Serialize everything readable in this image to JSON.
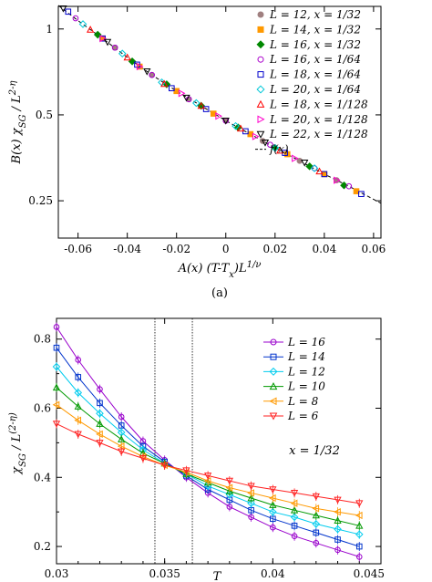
{
  "chart_data": [
    {
      "type": "scatter",
      "panel": "a",
      "caption": "(a)",
      "xlabel": "A(x) (T-T_x)L^(1/ν)",
      "ylabel": "B(x) χ_SG / L^(2-η)",
      "xlim": [
        -0.068,
        0.063
      ],
      "ylim": [
        0.185,
        1.2
      ],
      "y_scale": "log",
      "x_ticks": [
        "-0.06",
        "-0.04",
        "-0.02",
        "0",
        "0.02",
        "0.04",
        "0.06"
      ],
      "x_tick_values": [
        -0.06,
        -0.04,
        -0.02,
        0,
        0.02,
        0.04,
        0.06
      ],
      "y_ticks": [
        "1",
        "0.5",
        "0.25"
      ],
      "y_tick_values": [
        1,
        0.5,
        0.25
      ],
      "legend": "top-right",
      "series": [
        {
          "name": "L = 12, x = 1/32",
          "marker": "circle-filled",
          "color": "#a08080",
          "x": [
            -0.045,
            -0.03,
            -0.015,
            0.0,
            0.015,
            0.03,
            0.045
          ],
          "y": [
            0.86,
            0.69,
            0.567,
            0.477,
            0.405,
            0.345,
            0.295
          ]
        },
        {
          "name": "L = 14, x = 1/32",
          "marker": "square-filled",
          "color": "#ff9900",
          "x": [
            -0.05,
            -0.035,
            -0.02,
            -0.005,
            0.01,
            0.025,
            0.04,
            0.053
          ],
          "y": [
            0.926,
            0.738,
            0.606,
            0.505,
            0.428,
            0.364,
            0.31,
            0.27
          ]
        },
        {
          "name": "L = 16, x = 1/32",
          "marker": "diamond-filled",
          "color": "#008800",
          "x": [
            -0.052,
            -0.038,
            -0.024,
            -0.01,
            0.005,
            0.02,
            0.034,
            0.048
          ],
          "y": [
            0.955,
            0.77,
            0.64,
            0.538,
            0.452,
            0.383,
            0.33,
            0.283
          ]
        },
        {
          "name": "L = 16, x = 1/64",
          "marker": "circle-open",
          "color": "#aa00cc",
          "x": [
            -0.061,
            -0.045,
            -0.03,
            -0.015,
            0.0,
            0.018,
            0.036,
            0.05
          ],
          "y": [
            1.09,
            0.86,
            0.69,
            0.567,
            0.477,
            0.393,
            0.325,
            0.281
          ]
        },
        {
          "name": "L = 18, x = 1/64",
          "marker": "square-open",
          "color": "#0000cc",
          "x": [
            -0.064,
            -0.05,
            -0.036,
            -0.022,
            -0.008,
            0.008,
            0.024,
            0.04,
            0.055
          ],
          "y": [
            1.15,
            0.926,
            0.75,
            0.62,
            0.524,
            0.438,
            0.368,
            0.31,
            0.264
          ]
        },
        {
          "name": "L = 20, x = 1/64",
          "marker": "diamond-open",
          "color": "#00c8d8",
          "x": [
            -0.058,
            -0.042,
            -0.026,
            -0.012,
            0.004,
            0.02,
            0.036
          ],
          "y": [
            1.04,
            0.82,
            0.65,
            0.55,
            0.457,
            0.383,
            0.325
          ]
        },
        {
          "name": "L = 18, x = 1/128",
          "marker": "triangle-up-open",
          "color": "#ff0000",
          "x": [
            -0.055,
            -0.04,
            -0.025,
            -0.01,
            0.006,
            0.022,
            0.038
          ],
          "y": [
            0.995,
            0.795,
            0.642,
            0.538,
            0.448,
            0.375,
            0.317
          ]
        },
        {
          "name": "L = 20, x = 1/128",
          "marker": "triangle-right-open",
          "color": "#ff00cc",
          "x": [
            -0.05,
            -0.035,
            -0.018,
            -0.003,
            0.012,
            0.028,
            0.045
          ],
          "y": [
            0.926,
            0.738,
            0.595,
            0.495,
            0.42,
            0.352,
            0.295
          ]
        },
        {
          "name": "L = 22, x = 1/128",
          "marker": "triangle-down-open",
          "color": "#000000",
          "x": [
            -0.066,
            -0.048,
            -0.032,
            -0.016,
            0.0,
            0.016,
            0.032
          ],
          "y": [
            1.18,
            0.9,
            0.71,
            0.574,
            0.477,
            0.4,
            0.34
          ]
        }
      ],
      "curves": [
        {
          "name": "f(x)",
          "style": "dashed",
          "color": "#000000",
          "x": [
            -0.068,
            -0.06,
            -0.05,
            -0.04,
            -0.03,
            -0.02,
            -0.01,
            0.0,
            0.01,
            0.02,
            0.03,
            0.04,
            0.05,
            0.063
          ],
          "y": [
            1.21,
            1.07,
            0.926,
            0.795,
            0.69,
            0.606,
            0.538,
            0.477,
            0.428,
            0.383,
            0.345,
            0.31,
            0.281,
            0.245
          ]
        }
      ]
    },
    {
      "type": "line",
      "panel": "b",
      "xlabel": "T",
      "ylabel": "χ_SG / L^(2-η)",
      "annotation": "x = 1/32",
      "xlim": [
        0.03,
        0.045
      ],
      "ylim": [
        0.15,
        0.86
      ],
      "x_ticks": [
        "0.03",
        "0.035",
        "0.04",
        "0.045"
      ],
      "x_tick_values": [
        0.03,
        0.035,
        0.04,
        0.045
      ],
      "y_ticks": [
        "0.2",
        "0.4",
        "0.6",
        "0.8"
      ],
      "y_tick_values": [
        0.2,
        0.4,
        0.6,
        0.8
      ],
      "vlines": [
        0.03455,
        0.03628
      ],
      "legend": "top-right",
      "series": [
        {
          "name": "L = 16",
          "marker": "circle-open",
          "color": "#9900cc",
          "x": [
            0.03,
            0.031,
            0.032,
            0.033,
            0.034,
            0.035,
            0.036,
            0.037,
            0.038,
            0.039,
            0.04,
            0.041,
            0.042,
            0.043,
            0.044
          ],
          "y": [
            0.835,
            0.74,
            0.655,
            0.575,
            0.505,
            0.45,
            0.4,
            0.355,
            0.315,
            0.285,
            0.255,
            0.23,
            0.21,
            0.19,
            0.17
          ]
        },
        {
          "name": "L = 14",
          "marker": "square-open",
          "color": "#0033cc",
          "x": [
            0.03,
            0.031,
            0.032,
            0.033,
            0.034,
            0.035,
            0.036,
            0.037,
            0.038,
            0.039,
            0.04,
            0.041,
            0.042,
            0.043,
            0.044
          ],
          "y": [
            0.775,
            0.69,
            0.615,
            0.55,
            0.49,
            0.445,
            0.405,
            0.365,
            0.335,
            0.305,
            0.28,
            0.26,
            0.24,
            0.22,
            0.2
          ]
        },
        {
          "name": "L = 12",
          "marker": "diamond-open",
          "color": "#00ccee",
          "x": [
            0.03,
            0.031,
            0.032,
            0.033,
            0.034,
            0.035,
            0.036,
            0.037,
            0.038,
            0.039,
            0.04,
            0.041,
            0.042,
            0.043,
            0.044
          ],
          "y": [
            0.72,
            0.645,
            0.585,
            0.53,
            0.48,
            0.44,
            0.41,
            0.375,
            0.35,
            0.325,
            0.3,
            0.285,
            0.265,
            0.25,
            0.235
          ]
        },
        {
          "name": "L = 10",
          "marker": "triangle-up-open",
          "color": "#009900",
          "x": [
            0.03,
            0.031,
            0.032,
            0.033,
            0.034,
            0.035,
            0.036,
            0.037,
            0.038,
            0.039,
            0.04,
            0.041,
            0.042,
            0.043,
            0.044
          ],
          "y": [
            0.66,
            0.605,
            0.555,
            0.51,
            0.47,
            0.44,
            0.41,
            0.385,
            0.36,
            0.34,
            0.32,
            0.305,
            0.29,
            0.275,
            0.26
          ]
        },
        {
          "name": "L = 8",
          "marker": "triangle-left-open",
          "color": "#ff9900",
          "x": [
            0.03,
            0.031,
            0.032,
            0.033,
            0.034,
            0.035,
            0.036,
            0.037,
            0.038,
            0.039,
            0.04,
            0.041,
            0.042,
            0.043,
            0.044
          ],
          "y": [
            0.61,
            0.565,
            0.525,
            0.49,
            0.46,
            0.435,
            0.415,
            0.39,
            0.37,
            0.355,
            0.34,
            0.325,
            0.31,
            0.3,
            0.29
          ]
        },
        {
          "name": "L = 6",
          "marker": "triangle-down-open",
          "color": "#ff2222",
          "x": [
            0.03,
            0.031,
            0.032,
            0.033,
            0.034,
            0.035,
            0.036,
            0.037,
            0.038,
            0.039,
            0.04,
            0.041,
            0.042,
            0.043,
            0.044
          ],
          "y": [
            0.555,
            0.525,
            0.5,
            0.475,
            0.455,
            0.435,
            0.42,
            0.405,
            0.39,
            0.375,
            0.365,
            0.355,
            0.345,
            0.335,
            0.325
          ]
        }
      ]
    }
  ]
}
